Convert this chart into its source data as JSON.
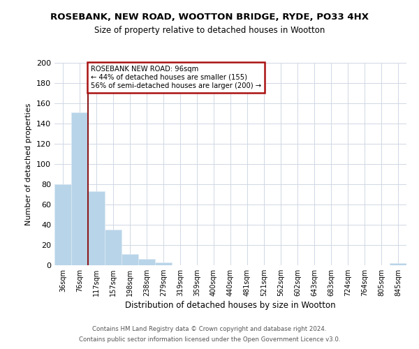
{
  "title1": "ROSEBANK, NEW ROAD, WOOTTON BRIDGE, RYDE, PO33 4HX",
  "title2": "Size of property relative to detached houses in Wootton",
  "xlabel": "Distribution of detached houses by size in Wootton",
  "ylabel": "Number of detached properties",
  "bar_labels": [
    "36sqm",
    "76sqm",
    "117sqm",
    "157sqm",
    "198sqm",
    "238sqm",
    "279sqm",
    "319sqm",
    "359sqm",
    "400sqm",
    "440sqm",
    "481sqm",
    "521sqm",
    "562sqm",
    "602sqm",
    "643sqm",
    "683sqm",
    "724sqm",
    "764sqm",
    "805sqm",
    "845sqm"
  ],
  "bar_values": [
    80,
    151,
    73,
    35,
    11,
    6,
    3,
    0,
    0,
    0,
    0,
    0,
    0,
    0,
    0,
    0,
    0,
    0,
    0,
    0,
    2
  ],
  "bar_color": "#b8d4e8",
  "bar_edge_color": "#dce9f3",
  "vline_x": 1.5,
  "vline_color": "#8b1a1a",
  "ylim": [
    0,
    200
  ],
  "yticks": [
    0,
    20,
    40,
    60,
    80,
    100,
    120,
    140,
    160,
    180,
    200
  ],
  "annotation_title": "ROSEBANK NEW ROAD: 96sqm",
  "annotation_line1": "← 44% of detached houses are smaller (155)",
  "annotation_line2": "56% of semi-detached houses are larger (200) →",
  "annotation_box_color": "#ffffff",
  "annotation_box_edge": "#aa1111",
  "footer1": "Contains HM Land Registry data © Crown copyright and database right 2024.",
  "footer2": "Contains public sector information licensed under the Open Government Licence v3.0.",
  "background_color": "#ffffff",
  "grid_color": "#d0d8e4"
}
